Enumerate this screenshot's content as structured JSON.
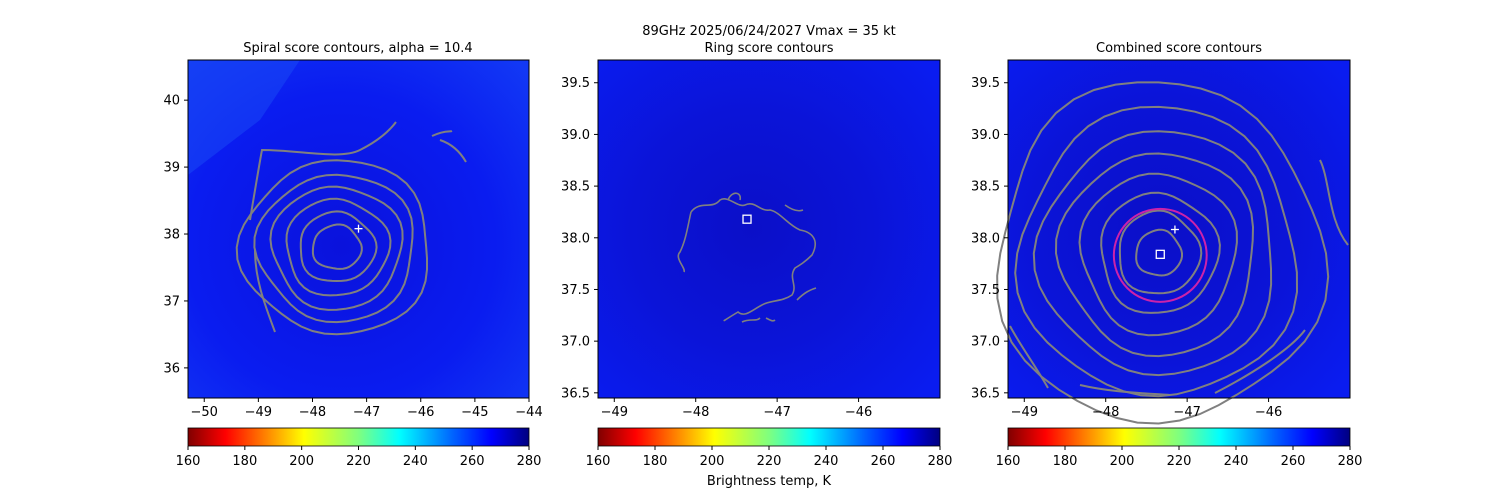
{
  "suptitle_line1": "89GHz  2025/06/24/2027    Vmax = 35 kt",
  "colorbar_label": "Brightness temp, K",
  "colorbar_ticks": [
    "160",
    "180",
    "200",
    "220",
    "240",
    "260",
    "280"
  ],
  "colors": {
    "contour": "#808080",
    "ring": "#cc22aa",
    "background": "#0a14f0",
    "marker": "#ffffff"
  },
  "chart_data": [
    {
      "type": "heatmap",
      "title": "Spiral score contours, alpha = 10.4",
      "xlim": [
        -50.3,
        -44.0
      ],
      "ylim": [
        35.55,
        40.6
      ],
      "x_ticks": [
        -50,
        -49,
        -48,
        -47,
        -46,
        -45,
        -44
      ],
      "y_ticks": [
        36,
        37,
        38,
        39,
        40
      ],
      "x_tick_labels": [
        "−50",
        "−49",
        "−48",
        "−47",
        "−46",
        "−45",
        "−44"
      ],
      "y_tick_labels": [
        "36",
        "37",
        "38",
        "39",
        "40"
      ],
      "color_scale": {
        "min": 160,
        "max": 280,
        "colormap": "jet"
      },
      "dominant_brightness_temp": 262,
      "contours": {
        "center": [
          -47.55,
          37.8
        ],
        "radii_x": [
          0.45,
          0.7,
          0.95,
          1.2,
          1.45,
          1.75
        ],
        "radii_y": [
          0.33,
          0.52,
          0.72,
          0.92,
          1.1,
          1.3
        ]
      },
      "markers": [
        {
          "type": "plus",
          "x": -47.15,
          "y": 38.08
        }
      ]
    },
    {
      "type": "heatmap",
      "title": "Ring score contours",
      "xlim": [
        -49.2,
        -45.0
      ],
      "ylim": [
        36.45,
        39.72
      ],
      "x_ticks": [
        -49,
        -48,
        -47,
        -46
      ],
      "y_ticks": [
        36.5,
        37.0,
        37.5,
        38.0,
        38.5,
        39.0,
        39.5
      ],
      "x_tick_labels": [
        "−49",
        "−48",
        "−47",
        "−46"
      ],
      "y_tick_labels": [
        "36.5",
        "37.0",
        "37.5",
        "38.0",
        "38.5",
        "39.0",
        "39.5"
      ],
      "color_scale": {
        "min": 160,
        "max": 280,
        "colormap": "jet"
      },
      "dominant_brightness_temp": 262,
      "markers": [
        {
          "type": "square",
          "x": -47.37,
          "y": 38.18
        }
      ]
    },
    {
      "type": "heatmap",
      "title": "Combined score contours",
      "xlim": [
        -49.2,
        -45.0
      ],
      "ylim": [
        36.45,
        39.72
      ],
      "x_ticks": [
        -49,
        -48,
        -47,
        -46
      ],
      "y_ticks": [
        36.5,
        37.0,
        37.5,
        38.0,
        38.5,
        39.0,
        39.5
      ],
      "x_tick_labels": [
        "−49",
        "−48",
        "−47",
        "−46"
      ],
      "y_tick_labels": [
        "36.5",
        "37.0",
        "37.5",
        "38.0",
        "38.5",
        "39.0",
        "39.5"
      ],
      "color_scale": {
        "min": 160,
        "max": 280,
        "colormap": "jet"
      },
      "dominant_brightness_temp": 262,
      "contours": {
        "center": [
          -47.35,
          37.85
        ],
        "radii_x": [
          0.28,
          0.5,
          0.72,
          0.95,
          1.2,
          1.45,
          1.7,
          2.0
        ],
        "radii_y": [
          0.22,
          0.4,
          0.58,
          0.78,
          0.98,
          1.18,
          1.4,
          1.65
        ]
      },
      "ring": {
        "center": [
          -47.33,
          37.83
        ],
        "radius_x": 0.57,
        "radius_y": 0.45
      },
      "markers": [
        {
          "type": "plus",
          "x": -47.15,
          "y": 38.08
        },
        {
          "type": "square",
          "x": -47.33,
          "y": 37.84
        }
      ]
    }
  ]
}
